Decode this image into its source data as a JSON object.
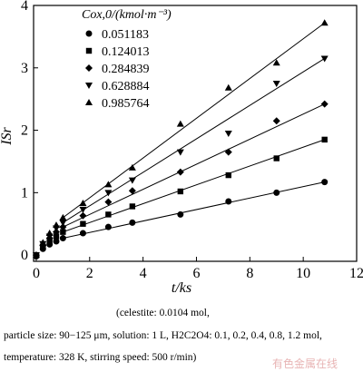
{
  "chart_data": {
    "type": "scatter",
    "x_label": "t/ks",
    "y_label": "ISr",
    "legend_title": "Cox,0/(kmol·m⁻³)",
    "x": [
      0,
      0.25,
      0.5,
      0.75,
      1.0,
      1.75,
      2.7,
      3.6,
      5.4,
      7.2,
      9.0,
      10.8
    ],
    "series": [
      {
        "name": "0.051183",
        "color": "#000000",
        "marker": "circle",
        "values": [
          -0.02,
          0.1,
          0.17,
          0.22,
          0.27,
          0.35,
          0.45,
          0.52,
          0.65,
          0.86,
          1.0,
          1.17
        ]
      },
      {
        "name": "0.124013",
        "color": "#000000",
        "marker": "square",
        "values": [
          0,
          0.13,
          0.22,
          0.3,
          0.37,
          0.5,
          0.65,
          0.78,
          1.02,
          1.28,
          1.55,
          1.85
        ]
      },
      {
        "name": "0.284839",
        "color": "#000000",
        "marker": "diamond",
        "values": [
          0,
          0.15,
          0.27,
          0.37,
          0.45,
          0.63,
          0.85,
          1.03,
          1.33,
          1.65,
          2.15,
          2.42
        ]
      },
      {
        "name": "0.628884",
        "color": "#000000",
        "marker": "triangle-down",
        "values": [
          0,
          0.18,
          0.3,
          0.43,
          0.52,
          0.73,
          1.0,
          1.2,
          1.65,
          1.95,
          2.75,
          3.15
        ]
      },
      {
        "name": "0.985764",
        "color": "#000000",
        "marker": "triangle-up",
        "values": [
          0,
          0.2,
          0.35,
          0.48,
          0.6,
          0.83,
          1.13,
          1.4,
          2.1,
          2.68,
          3.08,
          3.72
        ]
      }
    ],
    "xlim": [
      -0.1,
      12
    ],
    "xticks": [
      0,
      2,
      4,
      6,
      8,
      10,
      12
    ],
    "ylim": [
      -0.1,
      4
    ],
    "yticks": [
      0,
      1,
      2,
      3,
      4
    ]
  },
  "caption": [
    "(celestite: 0.0104 mol,",
    "particle size: 90−125 μm, solution: 1 L, H2C2O4: 0.1, 0.2, 0.4, 0.8, 1.2 mol, temperature: 328 K, stirring speed: 500 r/min)"
  ],
  "watermark": "有色金属在线"
}
